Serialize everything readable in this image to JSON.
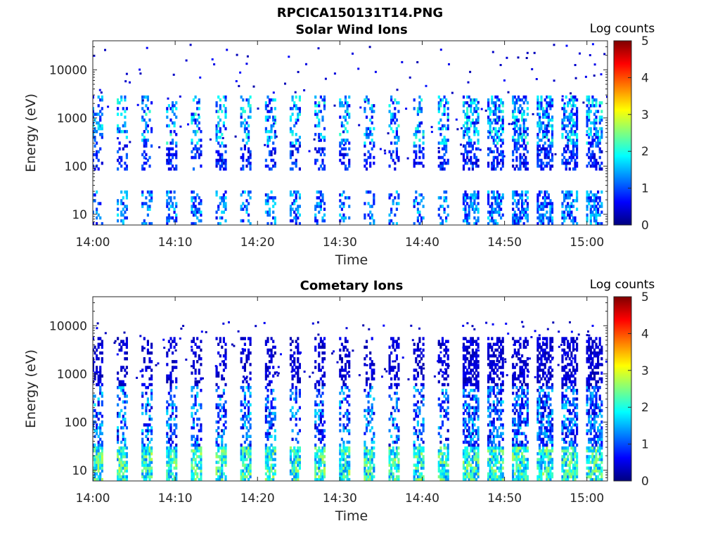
{
  "page": {
    "filename_title": "RPCICA150131T14.PNG"
  },
  "colormap": {
    "name": "jet",
    "stops": [
      "#00007f",
      "#0000ff",
      "#007fff",
      "#00ffff",
      "#7fff7f",
      "#ffff00",
      "#ff7f00",
      "#ff0000",
      "#7f0000"
    ]
  },
  "chart_data": [
    {
      "type": "heatmap",
      "title": "Solar Wind Ions",
      "xlabel": "Time",
      "ylabel": "Energy (eV)",
      "x_ticks": [
        "14:00",
        "14:10",
        "14:20",
        "14:30",
        "14:40",
        "14:50",
        "15:00"
      ],
      "x_range_minutes": [
        0,
        62.5
      ],
      "y_scale": "log",
      "y_ticks": [
        "10",
        "100",
        "1000",
        "10000"
      ],
      "y_range": [
        6,
        40000
      ],
      "colorbar": {
        "label": "Log counts",
        "ticks": [
          "0",
          "1",
          "2",
          "3",
          "4",
          "5"
        ],
        "range": [
          0,
          5
        ]
      },
      "description_bands": [
        {
          "energy_range": [
            6,
            30
          ],
          "log_counts": [
            0.5,
            1.8
          ]
        },
        {
          "energy_range": [
            80,
            300
          ],
          "log_counts": [
            0.3,
            1.2
          ]
        },
        {
          "energy_range": [
            300,
            3000
          ],
          "log_counts": [
            0.5,
            2.2
          ]
        }
      ],
      "sweep_minutes": [
        0.5,
        3.5,
        6.5,
        9.5,
        12.5,
        15.5,
        18.5,
        21.5,
        24.5,
        27.5,
        30.5,
        33.5,
        36.5,
        39.5,
        42.5,
        45.5,
        48.5,
        51.5,
        54.5,
        57.5,
        60.5
      ]
    },
    {
      "type": "heatmap",
      "title": "Cometary Ions",
      "xlabel": "Time",
      "ylabel": "Energy (eV)",
      "x_ticks": [
        "14:00",
        "14:10",
        "14:20",
        "14:30",
        "14:40",
        "14:50",
        "15:00"
      ],
      "x_range_minutes": [
        0,
        62.5
      ],
      "y_scale": "log",
      "y_ticks": [
        "10",
        "100",
        "1000",
        "10000"
      ],
      "y_range": [
        6,
        40000
      ],
      "colorbar": {
        "label": "Log counts",
        "ticks": [
          "0",
          "1",
          "2",
          "3",
          "4",
          "5"
        ],
        "range": [
          0,
          5
        ]
      },
      "description_bands": [
        {
          "energy_range": [
            6,
            30
          ],
          "log_counts": [
            1.2,
            2.8
          ]
        },
        {
          "energy_range": [
            30,
            600
          ],
          "log_counts": [
            0.3,
            1.8
          ]
        },
        {
          "energy_range": [
            600,
            6000
          ],
          "log_counts": [
            0.2,
            0.6
          ]
        }
      ],
      "sweep_minutes": [
        0.5,
        3.5,
        6.5,
        9.5,
        12.5,
        15.5,
        18.5,
        21.5,
        24.5,
        27.5,
        30.5,
        33.5,
        36.5,
        39.5,
        42.5,
        45.5,
        48.5,
        51.5,
        54.5,
        57.5,
        60.5
      ]
    }
  ]
}
